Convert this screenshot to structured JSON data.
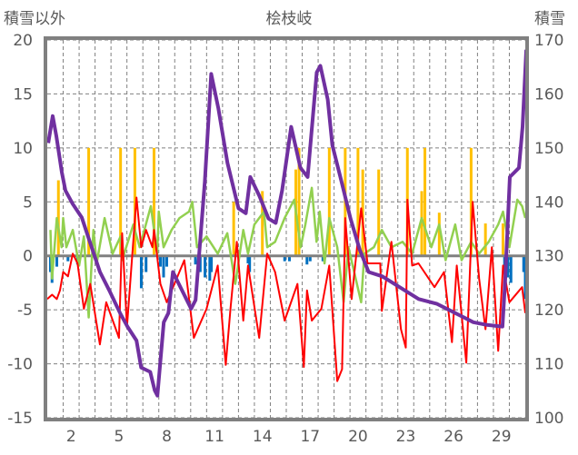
{
  "chart_data": {
    "type": "line",
    "title": "桧枝岐",
    "ylabel": "積雪以外",
    "y2label": "積雪",
    "ylim": [
      -15,
      20
    ],
    "y2lim": [
      100,
      170
    ],
    "xlim": [
      0,
      30
    ],
    "yticks": [
      -15,
      -10,
      -5,
      0,
      5,
      10,
      15,
      20
    ],
    "y2ticks": [
      100,
      110,
      120,
      130,
      140,
      150,
      160,
      170
    ],
    "xticks": [
      2,
      5,
      8,
      11,
      14,
      17,
      20,
      23,
      26,
      29
    ],
    "grid": true,
    "colors": {
      "snow_depth": "#7030A0",
      "red_series": "#FF0000",
      "green_series": "#92D050",
      "orange_bars": "#FFC000",
      "blue_bars": "#0070C0",
      "frame": "#808080"
    },
    "series": [
      {
        "name": "snow_depth",
        "axis": "right",
        "kind": "line",
        "x": [
          0.06,
          0.34,
          0.57,
          0.91,
          1.14,
          1.6,
          2.17,
          2.74,
          3.31,
          3.89,
          4.57,
          5.03,
          5.6,
          5.89,
          6.46,
          6.74,
          6.91,
          7.31,
          7.6,
          7.89,
          8.46,
          9.03,
          9.31,
          9.89,
          10.29,
          10.74,
          11.31,
          12,
          12.46,
          12.74,
          13.31,
          13.89,
          14.34,
          14.74,
          15.31,
          15.89,
          16.34,
          16.91,
          17.14,
          17.6,
          17.89,
          18.46,
          19.03,
          19.6,
          20.17,
          21.03,
          22.17,
          23.31,
          24.46,
          25.6,
          26.74,
          27.6,
          28.57,
          28.74,
          29.03,
          29.6,
          29.83,
          30.06
        ],
        "y": [
          150.9,
          155.9,
          152.2,
          145.5,
          142.1,
          139.6,
          137.1,
          132,
          127,
          123.6,
          119.4,
          116.9,
          114.3,
          109.3,
          108.5,
          105.1,
          104.1,
          117.7,
          119.4,
          127,
          123.6,
          120.2,
          121.8,
          143.8,
          163.7,
          157.3,
          147.2,
          138.8,
          137.9,
          144.6,
          141.1,
          136.9,
          136.1,
          142.1,
          153.9,
          146.3,
          144.6,
          164,
          165.2,
          159,
          150.5,
          143.8,
          136.9,
          131.2,
          127,
          126.2,
          124.1,
          122,
          121.1,
          119.4,
          117.7,
          117.2,
          116.9,
          125.6,
          144.6,
          146.3,
          153.9,
          168.2
        ]
      },
      {
        "name": "red_series",
        "axis": "left",
        "kind": "line",
        "x": [
          0,
          0.3,
          0.6,
          0.8,
          1,
          1.3,
          1.6,
          1.9,
          2.3,
          2.7,
          3.3,
          3.7,
          4.5,
          4.7,
          5,
          5.6,
          5.9,
          6.2,
          6.6,
          6.7,
          7.1,
          7.5,
          8.6,
          9.2,
          10,
          10.7,
          11.2,
          11.5,
          11.9,
          12.3,
          12.6,
          13.3,
          13.8,
          14.3,
          14.9,
          15.7,
          16.1,
          16.3,
          16.6,
          17.2,
          17.7,
          18.2,
          18.5,
          18.7,
          19.1,
          19.7,
          20.1,
          20.9,
          21,
          21.6,
          22.2,
          22.5,
          22.6,
          22.9,
          23.3,
          24.3,
          24.9,
          25.4,
          25.7,
          26.3,
          26.7,
          27.1,
          27.5,
          27.9,
          28.3,
          28.6,
          29,
          29.8,
          30
        ],
        "y": [
          -4,
          -3.6,
          -4,
          -3.2,
          -1.5,
          -1.9,
          0.2,
          -0.7,
          -4.9,
          -2.6,
          -8.2,
          -4.3,
          -7.6,
          2.1,
          -6.6,
          5.4,
          0.8,
          2.4,
          0.8,
          2.4,
          -2.6,
          -4.3,
          -0.4,
          -7.6,
          -4.9,
          -0.9,
          -10.1,
          -4.9,
          1.3,
          -6,
          -0.9,
          -7.6,
          0.2,
          -1.5,
          -6,
          -2.6,
          -10.3,
          -3.2,
          -6,
          -4.9,
          -0.9,
          -11.6,
          -10.5,
          3.5,
          -4,
          4.4,
          -0.7,
          -0.7,
          -5.1,
          1.3,
          -6.8,
          -8.5,
          5.2,
          -0.9,
          -0.7,
          -2.9,
          -1.5,
          -8,
          -0.9,
          -9.9,
          5,
          -2.1,
          -6.8,
          0.8,
          -8.8,
          -0.9,
          -4.3,
          -2.9,
          -5.3
        ]
      },
      {
        "name": "green_series",
        "axis": "left",
        "kind": "line",
        "x": [
          0.2,
          0.3,
          0.6,
          0.9,
          1,
          1.2,
          1.6,
          2,
          2.3,
          2.6,
          2.9,
          3.1,
          3.6,
          4.1,
          4.6,
          4.7,
          5.4,
          5.8,
          6.5,
          6.9,
          7,
          7.3,
          7.8,
          8.3,
          8.9,
          9.1,
          9.4,
          10,
          10.7,
          11.3,
          11.8,
          12.3,
          12.6,
          13,
          13.6,
          13.8,
          14.3,
          14.9,
          15.5,
          15.9,
          16.2,
          16.6,
          16.9,
          17.1,
          17.4,
          17.7,
          18.2,
          18.6,
          18.9,
          19.7,
          19.9,
          20.5,
          21,
          21.6,
          22.3,
          22.9,
          23.5,
          24.1,
          24.6,
          25,
          25.6,
          26,
          26.6,
          27.1,
          27.7,
          28.3,
          28.6,
          29,
          29.5,
          29.8,
          30
        ],
        "y": [
          2.4,
          -2.1,
          3.5,
          0.8,
          3.5,
          0.8,
          2.4,
          -0.9,
          1.8,
          -5.7,
          2.4,
          -0.7,
          3.5,
          0.2,
          1.8,
          -0.4,
          2.9,
          0.8,
          4.6,
          0.2,
          4.1,
          0.8,
          2.4,
          3.5,
          4.1,
          5,
          0.8,
          1.8,
          0.2,
          2.1,
          -2.6,
          2.4,
          0.2,
          2.9,
          4.1,
          0.8,
          1.3,
          3.5,
          5.2,
          0.8,
          2.9,
          6.3,
          1.3,
          4.1,
          -0.7,
          3.5,
          0.8,
          -4.3,
          0.8,
          -4.3,
          0.2,
          0.8,
          2.4,
          0.8,
          1.3,
          0.2,
          3.5,
          0.8,
          2.9,
          -0.4,
          2.9,
          -0.4,
          1.3,
          0.2,
          1.3,
          2.9,
          4.1,
          0.8,
          5.2,
          4.6,
          3.5
        ]
      },
      {
        "name": "orange_bars",
        "axis": "left",
        "kind": "bar",
        "x": [
          0.7,
          2.6,
          4.6,
          5.5,
          6.7,
          11.7,
          13.5,
          15.6,
          15.8,
          17.7,
          18.7,
          19.5,
          19.8,
          20.8,
          22.6,
          23.5,
          23.7,
          24.6,
          26.6,
          27.5,
          28.6
        ],
        "y": [
          7,
          10,
          10,
          10,
          10,
          5,
          6,
          8,
          10,
          10,
          10,
          10,
          8,
          8,
          10,
          6,
          10,
          4,
          10,
          3,
          3
        ]
      },
      {
        "name": "blue_bars",
        "axis": "left",
        "kind": "bar",
        "x": [
          0.2,
          0.3,
          0.6,
          1.3,
          1.9,
          5.9,
          6.2,
          7.1,
          7.3,
          7.5,
          9.3,
          9.6,
          9.9,
          10.2,
          10.3,
          12.6,
          12.7,
          14.9,
          15.2,
          16.3,
          16.5,
          17.3,
          28.7,
          28.9,
          29.1,
          29.9,
          30
        ],
        "y": [
          -1.5,
          -2.5,
          -1,
          -0.5,
          -0.8,
          -3,
          -1.5,
          -1,
          -2,
          -1,
          -0.8,
          -1.5,
          -2,
          -2.3,
          -1.5,
          -0.7,
          -1.5,
          -0.5,
          -0.5,
          -0.8,
          -0.5,
          -0.5,
          -1,
          -2,
          -2.5,
          -1.5,
          -4
        ]
      }
    ]
  }
}
